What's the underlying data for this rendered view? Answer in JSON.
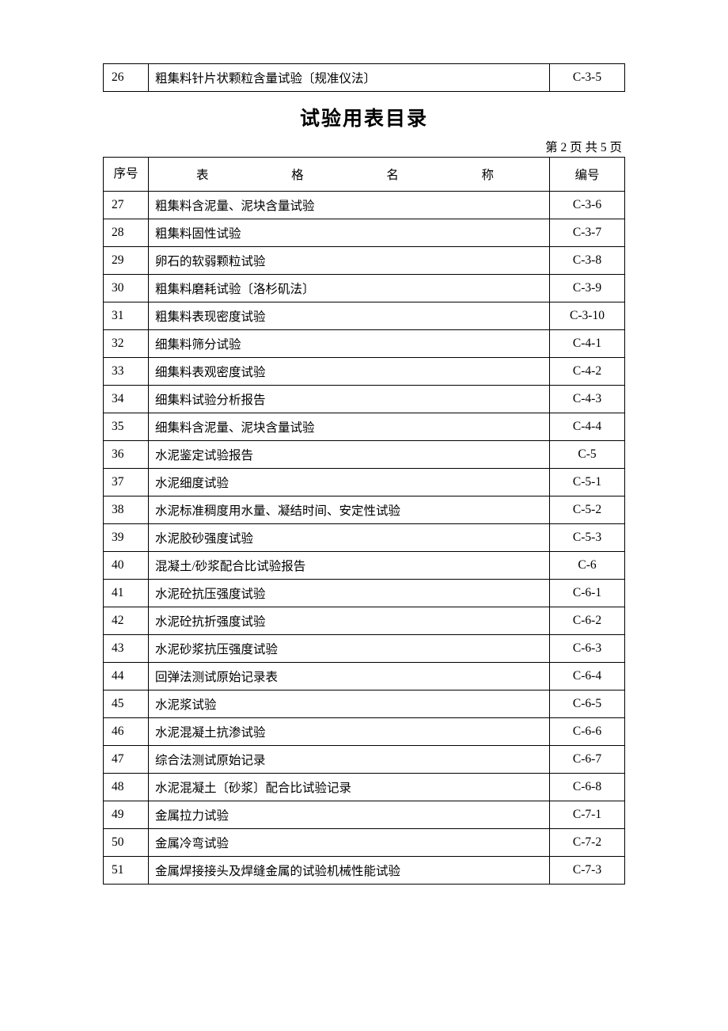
{
  "topTable": {
    "row": {
      "seq": "26",
      "name": "粗集料针片状颗粒含量试验〔规准仪法〕",
      "code": "C-3-5"
    }
  },
  "title": "试验用表目录",
  "pageInfo": "第 2 页  共 5 页",
  "header": {
    "seq": "序号",
    "name": "表　　　格　　　名　　　称",
    "code": "编号"
  },
  "rows": [
    {
      "seq": "27",
      "name": "粗集料含泥量、泥块含量试验",
      "code": "C-3-6"
    },
    {
      "seq": "28",
      "name": "粗集料固性试验",
      "code": "C-3-7"
    },
    {
      "seq": "29",
      "name": "卵石的软弱颗粒试验",
      "code": "C-3-8"
    },
    {
      "seq": "30",
      "name": "粗集料磨耗试验〔洛杉矶法〕",
      "code": "C-3-9"
    },
    {
      "seq": "31",
      "name": "粗集料表现密度试验",
      "code": "C-3-10"
    },
    {
      "seq": "32",
      "name": "细集料筛分试验",
      "code": "C-4-1"
    },
    {
      "seq": "33",
      "name": "细集料表观密度试验",
      "code": "C-4-2"
    },
    {
      "seq": "34",
      "name": "细集料试验分析报告",
      "code": "C-4-3"
    },
    {
      "seq": "35",
      "name": "细集料含泥量、泥块含量试验",
      "code": "C-4-4"
    },
    {
      "seq": "36",
      "name": "水泥鉴定试验报告",
      "code": "C-5"
    },
    {
      "seq": "37",
      "name": "水泥细度试验",
      "code": "C-5-1"
    },
    {
      "seq": "38",
      "name": "水泥标准稠度用水量、凝结时间、安定性试验",
      "code": "C-5-2"
    },
    {
      "seq": "39",
      "name": "水泥胶砂强度试验",
      "code": "C-5-3"
    },
    {
      "seq": "40",
      "name": "混凝土/砂浆配合比试验报告",
      "code": "C-6"
    },
    {
      "seq": "41",
      "name": "水泥砼抗压强度试验",
      "code": "C-6-1"
    },
    {
      "seq": "42",
      "name": "水泥砼抗折强度试验",
      "code": "C-6-2"
    },
    {
      "seq": "43",
      "name": "水泥砂浆抗压强度试验",
      "code": "C-6-3"
    },
    {
      "seq": "44",
      "name": "回弹法测试原始记录表",
      "code": "C-6-4"
    },
    {
      "seq": "45",
      "name": "水泥浆试验",
      "code": "C-6-5"
    },
    {
      "seq": "46",
      "name": "水泥混凝土抗渗试验",
      "code": "C-6-6"
    },
    {
      "seq": "47",
      "name": "综合法测试原始记录",
      "code": "C-6-7"
    },
    {
      "seq": "48",
      "name": "水泥混凝土〔砂浆〕配合比试验记录",
      "code": "C-6-8"
    },
    {
      "seq": "49",
      "name": "金属拉力试验",
      "code": "C-7-1"
    },
    {
      "seq": "50",
      "name": "金属冷弯试验",
      "code": "C-7-2"
    },
    {
      "seq": "51",
      "name": "金属焊接接头及焊缝金属的试验机械性能试验",
      "code": "C-7-3"
    }
  ],
  "style": {
    "border_color": "#000000",
    "background_color": "#ffffff",
    "font_size_body": 15.5,
    "font_size_title": 25,
    "col_widths": {
      "seq": 38,
      "code": 78
    }
  }
}
